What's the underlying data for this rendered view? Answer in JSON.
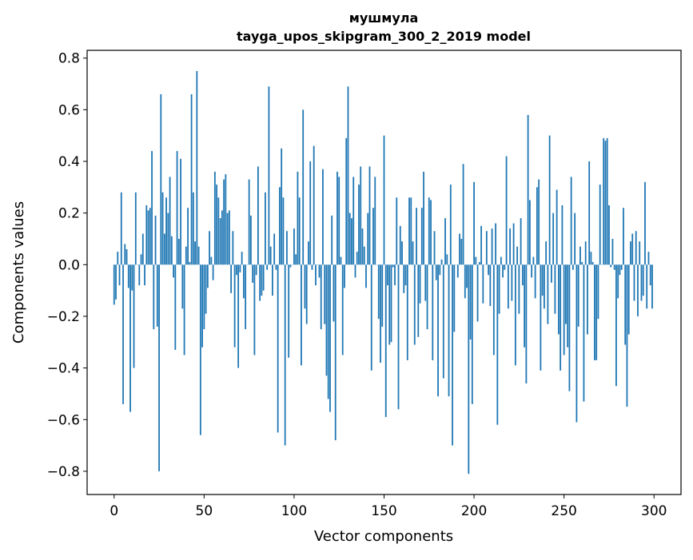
{
  "chart_data": {
    "type": "bar",
    "title": "мушмула",
    "subtitle": "tayga_upos_skipgram_300_2_2019 model",
    "xlabel": "Vector components",
    "ylabel": "Components values",
    "xlim": [
      -15,
      315
    ],
    "ylim": [
      -0.89,
      0.83
    ],
    "xticks": [
      0,
      50,
      100,
      150,
      200,
      250,
      300
    ],
    "yticks": [
      -0.8,
      -0.6,
      -0.4,
      -0.2,
      0.0,
      0.2,
      0.4,
      0.6,
      0.8
    ],
    "xtick_labels": [
      "0",
      "50",
      "100",
      "150",
      "200",
      "250",
      "300"
    ],
    "ytick_labels": [
      "−0.8",
      "−0.6",
      "−0.4",
      "−0.2",
      "0.0",
      "0.2",
      "0.4",
      "0.6",
      "0.8"
    ],
    "grid": false,
    "color": "#1f77b4",
    "values": [
      -0.155,
      -0.135,
      0.05,
      -0.08,
      0.28,
      -0.54,
      0.08,
      0.06,
      -0.09,
      -0.57,
      -0.1,
      -0.4,
      0.28,
      0.0,
      -0.08,
      0.04,
      0.12,
      -0.08,
      0.23,
      0.21,
      0.22,
      0.44,
      -0.25,
      0.19,
      -0.24,
      -0.8,
      0.66,
      0.28,
      0.12,
      0.26,
      0.2,
      0.34,
      0.11,
      -0.05,
      -0.33,
      0.44,
      0.1,
      0.41,
      -0.17,
      -0.35,
      0.07,
      0.22,
      0.01,
      0.66,
      0.28,
      0.09,
      0.75,
      0.07,
      -0.66,
      -0.32,
      -0.25,
      -0.19,
      -0.09,
      0.13,
      0.03,
      -0.06,
      0.36,
      0.31,
      0.26,
      0.18,
      0.21,
      0.33,
      0.35,
      0.2,
      0.21,
      -0.11,
      0.13,
      -0.32,
      -0.04,
      -0.4,
      -0.03,
      0.05,
      -0.13,
      -0.25,
      0.0,
      0.33,
      0.19,
      -0.07,
      -0.35,
      -0.04,
      0.38,
      -0.14,
      -0.12,
      -0.1,
      0.28,
      -0.02,
      0.69,
      0.07,
      -0.12,
      0.12,
      -0.02,
      -0.65,
      0.3,
      0.45,
      0.26,
      -0.7,
      0.13,
      -0.36,
      -0.01,
      0.0,
      0.14,
      0.04,
      0.36,
      0.26,
      -0.39,
      0.6,
      -0.17,
      -0.23,
      0.09,
      0.4,
      -0.02,
      0.46,
      -0.08,
      0.0,
      -0.05,
      -0.25,
      0.37,
      -0.23,
      -0.43,
      -0.52,
      -0.57,
      0.19,
      -0.22,
      -0.68,
      0.36,
      0.34,
      0.03,
      -0.35,
      -0.09,
      0.49,
      0.69,
      0.2,
      0.18,
      0.34,
      -0.05,
      0.05,
      0.31,
      0.38,
      0.14,
      0.07,
      -0.09,
      0.2,
      0.38,
      -0.41,
      0.22,
      0.34,
      0.0,
      -0.21,
      -0.38,
      -0.24,
      0.5,
      -0.59,
      -0.08,
      -0.31,
      -0.3,
      -0.01,
      -0.08,
      0.26,
      -0.56,
      0.15,
      0.09,
      -0.11,
      -0.08,
      -0.37,
      0.26,
      0.26,
      0.09,
      -0.31,
      0.22,
      -0.28,
      -0.15,
      0.22,
      0.36,
      -0.14,
      -0.25,
      0.26,
      0.25,
      -0.37,
      0.13,
      -0.06,
      -0.51,
      -0.04,
      0.02,
      -0.44,
      0.18,
      0.04,
      -0.51,
      0.31,
      -0.7,
      -0.26,
      0.0,
      -0.05,
      0.12,
      0.1,
      0.39,
      -0.13,
      -0.09,
      -0.81,
      -0.29,
      -0.54,
      0.32,
      0.03,
      -0.22,
      0.01,
      0.15,
      -0.15,
      0.0,
      0.13,
      -0.04,
      -0.16,
      0.14,
      -0.35,
      0.16,
      -0.62,
      -0.19,
      0.03,
      -0.05,
      -0.02,
      0.42,
      -0.17,
      0.14,
      -0.14,
      0.16,
      -0.39,
      0.07,
      -0.19,
      0.18,
      -0.08,
      -0.32,
      -0.46,
      0.58,
      0.25,
      -0.05,
      0.03,
      -0.13,
      0.3,
      0.33,
      -0.41,
      -0.12,
      -0.17,
      0.09,
      -0.23,
      0.5,
      -0.07,
      0.2,
      -0.19,
      0.29,
      -0.27,
      -0.41,
      0.23,
      -0.35,
      -0.23,
      -0.32,
      -0.49,
      0.34,
      -0.02,
      0.2,
      -0.61,
      -0.24,
      0.07,
      0.01,
      -0.53,
      0.09,
      -0.27,
      0.4,
      0.05,
      0.01,
      -0.37,
      -0.37,
      -0.21,
      0.31,
      0.0,
      0.49,
      0.48,
      0.49,
      0.23,
      -0.01,
      0.1,
      -0.02,
      -0.47,
      -0.13,
      -0.04,
      -0.02,
      0.22,
      -0.31,
      -0.55,
      -0.27,
      0.09,
      0.12,
      -0.14,
      0.13,
      -0.2,
      0.09,
      -0.14,
      -0.12,
      0.32,
      -0.17,
      0.05,
      -0.08,
      -0.17
    ]
  }
}
